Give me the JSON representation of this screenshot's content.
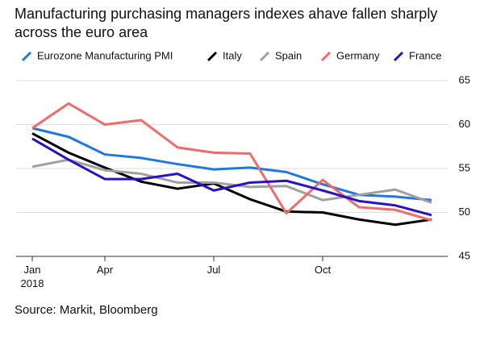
{
  "chart_data": {
    "type": "line",
    "title": "Manufacturing purchasing managers indexes ahave fallen sharply across the euro area",
    "source": "Source: Markit, Bloomberg",
    "categories": [
      "Jan\n2018",
      null,
      "Apr",
      null,
      null,
      "Jul",
      null,
      null,
      "Oct",
      null,
      null,
      null
    ],
    "series": [
      {
        "name": "Eurozone Manufacturing PMI",
        "color": "#1f78e0",
        "values": [
          59.6,
          58.6,
          56.6,
          56.2,
          55.5,
          54.9,
          55.1,
          54.6,
          53.2,
          52.0,
          51.8,
          51.4
        ]
      },
      {
        "name": "Italy",
        "color": "#000000",
        "values": [
          59.0,
          56.8,
          55.1,
          53.5,
          52.7,
          53.3,
          51.5,
          50.1,
          50.0,
          49.2,
          48.6,
          49.2
        ]
      },
      {
        "name": "Spain",
        "color": "#a0a0a0",
        "values": [
          55.2,
          56.0,
          54.8,
          54.4,
          53.4,
          53.4,
          52.9,
          53.0,
          51.4,
          52.0,
          52.6,
          51.1
        ]
      },
      {
        "name": "Germany",
        "color": "#f06b6b",
        "values": [
          59.6,
          62.4,
          60.0,
          60.5,
          57.4,
          56.8,
          56.7,
          49.9,
          53.7,
          50.6,
          50.3,
          49.1
        ]
      },
      {
        "name": "France",
        "color": "#2a12c0",
        "values": [
          58.4,
          56.0,
          53.8,
          53.8,
          54.4,
          52.5,
          53.4,
          53.6,
          52.5,
          51.3,
          50.8,
          49.7
        ]
      }
    ],
    "ylim": [
      45,
      65
    ],
    "yticks": [
      45,
      50,
      55,
      60,
      65
    ],
    "grid": true
  }
}
